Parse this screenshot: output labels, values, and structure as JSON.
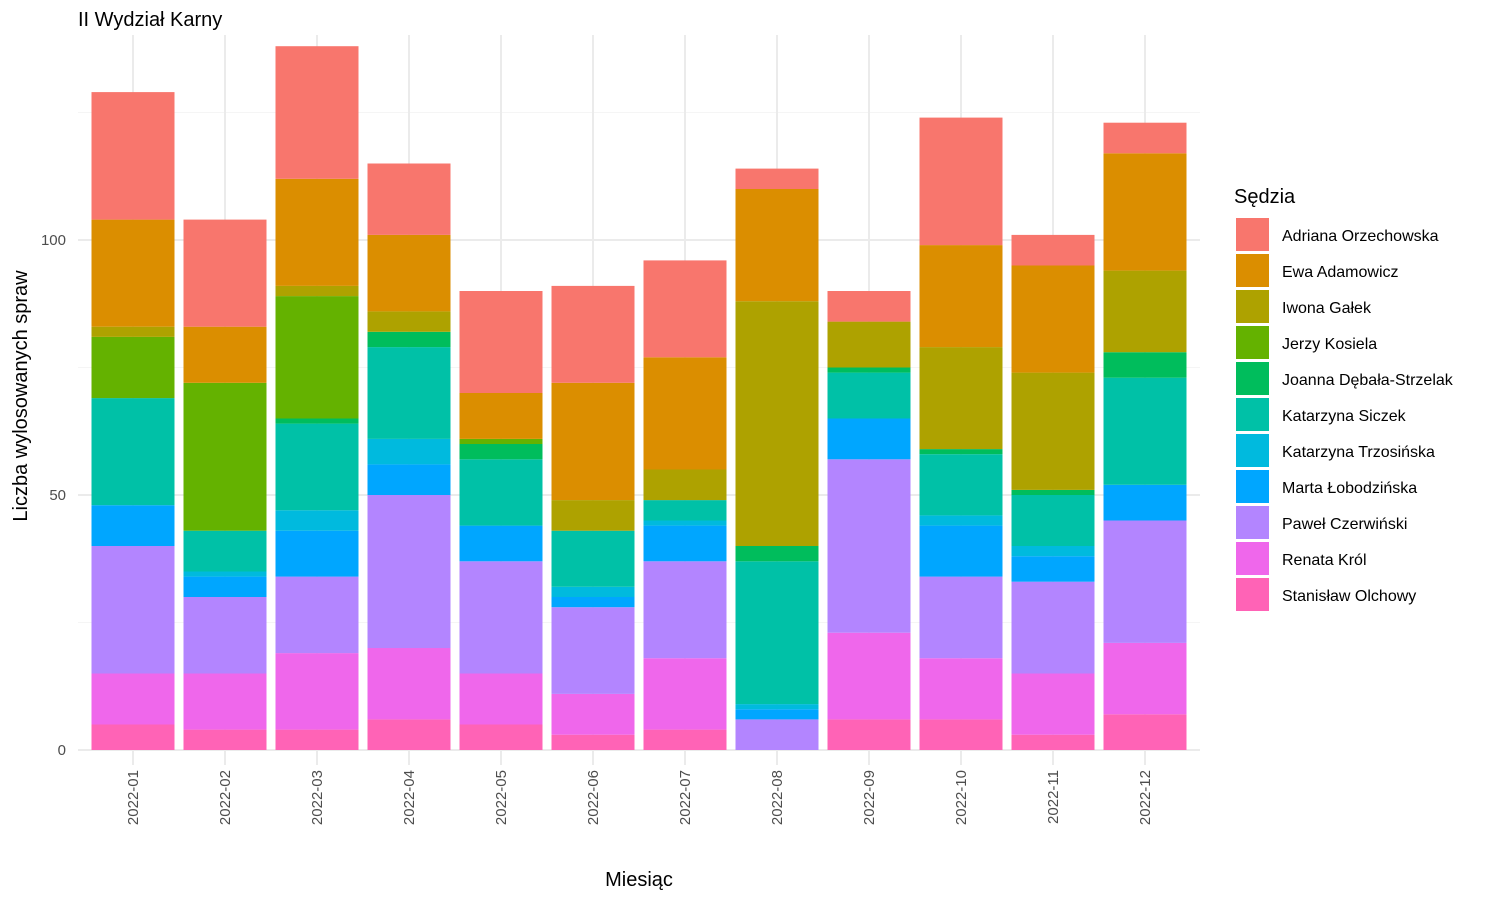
{
  "chart_data": {
    "type": "bar",
    "stacked": true,
    "title": "II Wydział Karny",
    "xlabel": "Miesiąc",
    "ylabel": "Liczba wylosowanych spraw",
    "ylim": [
      0,
      140
    ],
    "yticks": [
      0,
      50,
      100
    ],
    "grid": true,
    "legend": {
      "title": "Sędzia",
      "position": "right"
    },
    "categories": [
      "2022-01",
      "2022-02",
      "2022-03",
      "2022-04",
      "2022-05",
      "2022-06",
      "2022-07",
      "2022-08",
      "2022-09",
      "2022-10",
      "2022-11",
      "2022-12"
    ],
    "series": [
      {
        "name": "Adriana Orzechowska",
        "color": "#F8766D",
        "values": [
          25,
          21,
          26,
          14,
          20,
          19,
          19,
          4,
          6,
          25,
          6,
          6
        ]
      },
      {
        "name": "Ewa Adamowicz",
        "color": "#DB8E00",
        "values": [
          21,
          11,
          21,
          15,
          9,
          23,
          22,
          22,
          0,
          20,
          21,
          23
        ]
      },
      {
        "name": "Iwona Gałek",
        "color": "#AEA200",
        "values": [
          2,
          0,
          2,
          4,
          0,
          6,
          6,
          48,
          9,
          20,
          23,
          16
        ]
      },
      {
        "name": "Jerzy Kosiela",
        "color": "#64B200",
        "values": [
          12,
          29,
          24,
          0,
          1,
          0,
          0,
          0,
          0,
          0,
          0,
          0
        ]
      },
      {
        "name": "Joanna Dębała-Strzelak",
        "color": "#00BD5C",
        "values": [
          0,
          0,
          1,
          3,
          3,
          0,
          0,
          3,
          1,
          1,
          1,
          5
        ]
      },
      {
        "name": "Katarzyna Siczek",
        "color": "#00C1A7",
        "values": [
          21,
          8,
          17,
          18,
          13,
          11,
          4,
          28,
          9,
          12,
          10,
          21
        ]
      },
      {
        "name": "Katarzyna Trzosińska",
        "color": "#00BADE",
        "values": [
          0,
          1,
          4,
          5,
          0,
          2,
          1,
          1,
          0,
          2,
          2,
          0
        ]
      },
      {
        "name": "Marta Łobodzińska",
        "color": "#00A6FF",
        "values": [
          8,
          4,
          9,
          6,
          7,
          2,
          7,
          2,
          8,
          10,
          5,
          7
        ]
      },
      {
        "name": "Paweł Czerwiński",
        "color": "#B385FF",
        "values": [
          25,
          15,
          15,
          30,
          22,
          17,
          19,
          6,
          34,
          16,
          18,
          24
        ]
      },
      {
        "name": "Renata Król",
        "color": "#EF67EB",
        "values": [
          10,
          11,
          15,
          14,
          10,
          8,
          14,
          0,
          17,
          12,
          12,
          14
        ]
      },
      {
        "name": "Stanisław Olchowy",
        "color": "#FF63B6",
        "values": [
          5,
          4,
          4,
          6,
          5,
          3,
          4,
          0,
          6,
          6,
          3,
          7
        ]
      }
    ]
  }
}
